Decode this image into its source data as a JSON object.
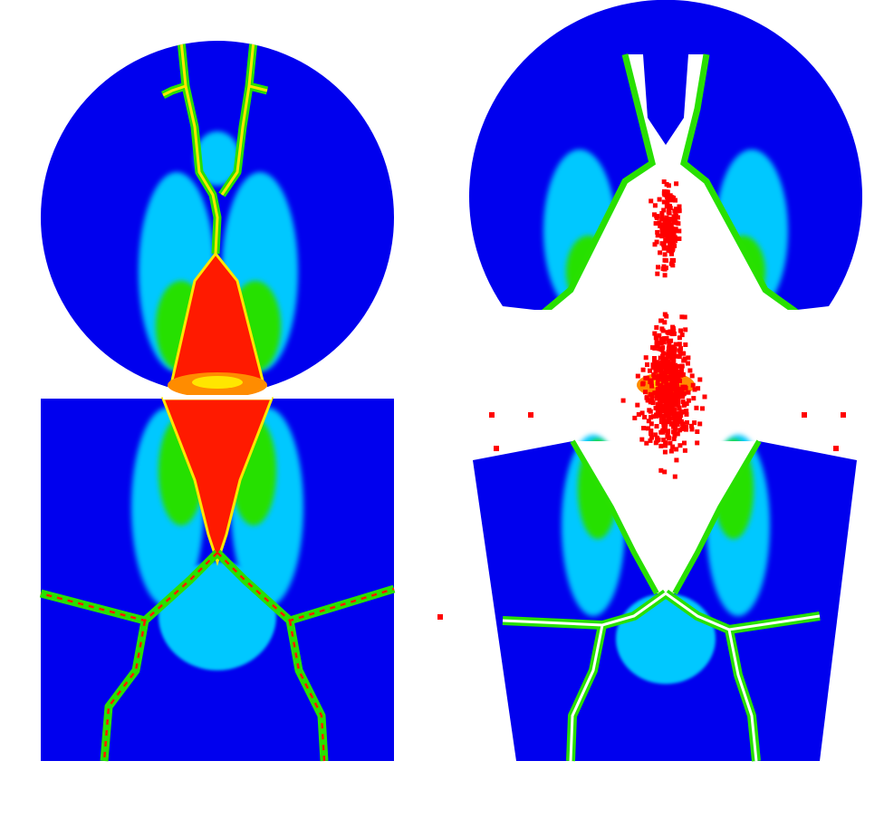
{
  "figure": {
    "background": "#ffffff",
    "colors": {
      "background_field": "#0000ee",
      "mid_field": "#00c8ff",
      "low_damage": "#00e0a0",
      "medium_damage": "#28e000",
      "high_damage": "#ff1a00",
      "peak_damage": "#ff8c00",
      "particles": "#ff0000"
    },
    "panels": [
      {
        "name": "left-simulation",
        "state": "before-fragmentation"
      },
      {
        "name": "right-simulation",
        "state": "after-fragmentation",
        "particle_count": 700
      }
    ]
  }
}
